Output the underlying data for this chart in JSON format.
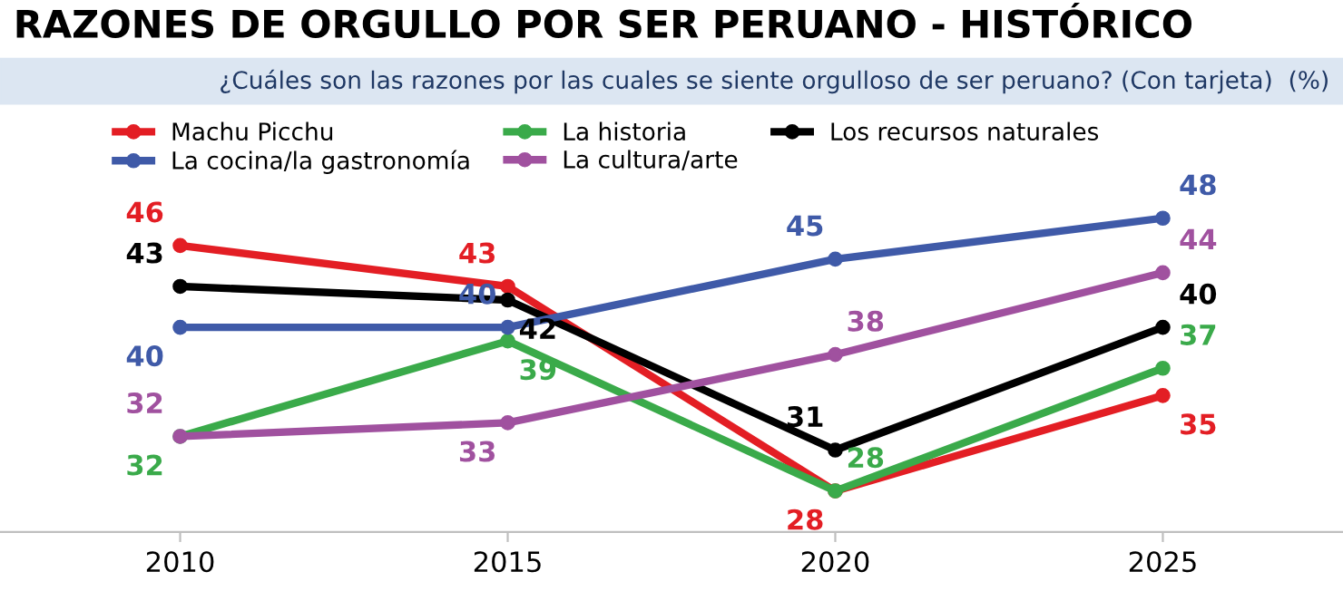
{
  "chart_data": {
    "type": "line",
    "title": "RAZONES DE ORGULLO POR SER PERUANO - HISTÓRICO",
    "subtitle": "¿Cuáles son las razones por las cuales se siente orgulloso de ser peruano? (Con tarjeta)  (%)",
    "categories": [
      "2010",
      "2015",
      "2020",
      "2025"
    ],
    "series": [
      {
        "name": "Machu Picchu",
        "color": "#e31e24",
        "values": [
          46,
          43,
          28,
          35
        ]
      },
      {
        "name": "La historia",
        "color": "#3aaa4a",
        "values": [
          32,
          39,
          28,
          37
        ]
      },
      {
        "name": "Los recursos naturales",
        "color": "#000000",
        "values": [
          43,
          42,
          31,
          40
        ]
      },
      {
        "name": "La cocina/la gastronomía",
        "color": "#3f5aa8",
        "values": [
          40,
          40,
          45,
          48
        ]
      },
      {
        "name": "La cultura/arte",
        "color": "#a0519f",
        "values": [
          32,
          33,
          38,
          44
        ]
      }
    ],
    "data_labels": true,
    "legend": "top left",
    "marker": "circle",
    "grid": false
  }
}
